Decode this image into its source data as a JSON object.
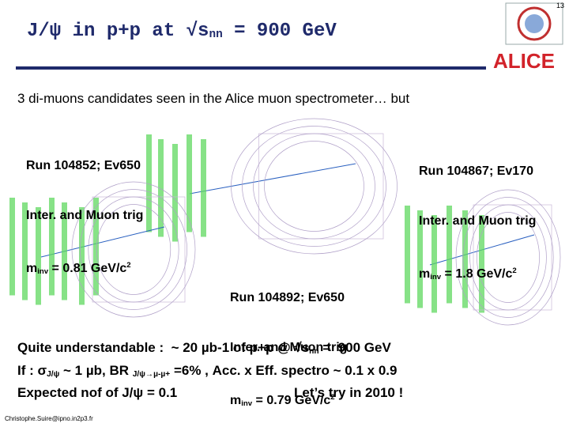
{
  "slide_number": "13",
  "title": {
    "main": "J/ψ in p+p at √s",
    "sub": "nn",
    "rest": " = 900 GeV"
  },
  "logo": "ALICE",
  "intro": "3 di-muons candidates seen in the Alice muon spectrometer… but",
  "events": [
    {
      "run": "Run 104852; Ev650",
      "trigger": "Inter. and Muon trig",
      "mass": {
        "symbol": "m",
        "sub": "inv",
        "value": " = 0.81 GeV/c",
        "sup": "2"
      }
    },
    {
      "run": "Run 104867; Ev170",
      "trigger": "Inter. and Muon trig",
      "mass": {
        "symbol": "m",
        "sub": "inv",
        "value": " = 1.8 GeV/c",
        "sup": "2"
      }
    },
    {
      "run": "Run 104892; Ev650",
      "trigger": "Inter. and Muon trig",
      "mass": {
        "symbol": "m",
        "sub": "inv",
        "value": " = 0.79 GeV/c",
        "sup": "2"
      }
    }
  ],
  "summary": [
    {
      "text": "Quite understandable :  ~ 20 µb-1 of p+p @ √s",
      "sub": "nn",
      "rest": " =  900 GeV"
    },
    {
      "text": "If : σ",
      "sub": "J/ψ",
      "mid": " ~ 1 µb, BR ",
      "sub2": "J/ψ→µ-µ+",
      "rest": " =6% , Acc. x Eff. spectro ~ 0.1 x 0.9"
    },
    {
      "text": "Expected nof of J/ψ = 0.1",
      "rest": "Let’s try in 2010 !"
    }
  ],
  "footer": "Christophe.Suire@ipno.in2p3.fr"
}
